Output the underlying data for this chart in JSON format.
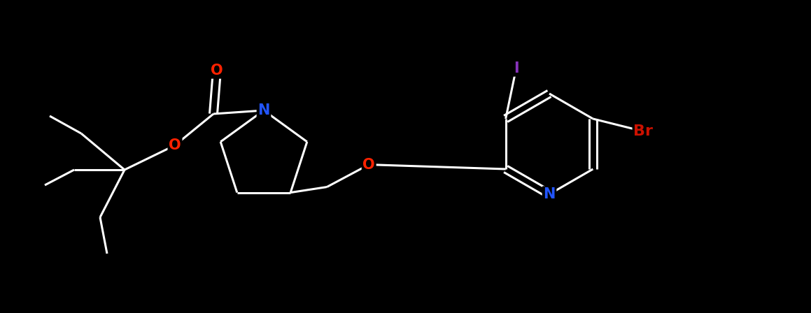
{
  "background_color": "#000000",
  "bond_color": "#ffffff",
  "bond_width": 2.2,
  "atom_colors": {
    "N": "#2255ff",
    "O": "#ff2200",
    "Br": "#cc1100",
    "I": "#8833bb",
    "C": "#ffffff"
  },
  "fig_width": 11.59,
  "fig_height": 4.48,
  "dpi": 100
}
